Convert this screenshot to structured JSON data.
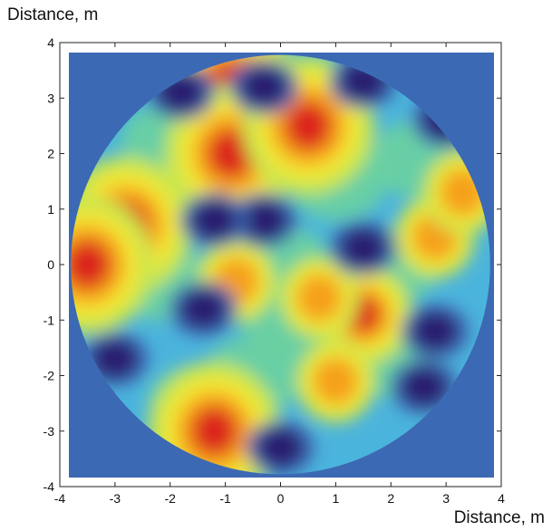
{
  "chart_data": {
    "type": "heatmap",
    "xlabel": "Distance, m",
    "ylabel": "Distance, m",
    "xlim": [
      -4,
      4
    ],
    "ylim": [
      -4,
      4
    ],
    "x_ticks": [
      "-4",
      "-3",
      "-2",
      "-1",
      "0",
      "1",
      "2",
      "3",
      "4"
    ],
    "y_ticks": [
      "4",
      "3",
      "2",
      "1",
      "0",
      "-1",
      "-2",
      "-3",
      "-4"
    ],
    "domain_shape": "circle",
    "domain_radius": 3.8,
    "colormap": {
      "background": "#3c69b4",
      "levels": [
        "#2a1f6e",
        "#3c69b4",
        "#4bb4dc",
        "#6cd2a0",
        "#c8e650",
        "#f5e632",
        "#f5a01e",
        "#dc281e"
      ]
    },
    "hotspots": [
      {
        "x": -2.8,
        "y": 0.7,
        "level": "high"
      },
      {
        "x": -3.5,
        "y": 0.0,
        "level": "high"
      },
      {
        "x": -0.9,
        "y": 3.2,
        "level": "high"
      },
      {
        "x": -0.9,
        "y": 2.0,
        "level": "high"
      },
      {
        "x": 0.5,
        "y": 2.5,
        "level": "high"
      },
      {
        "x": -1.2,
        "y": -3.0,
        "level": "high"
      },
      {
        "x": 1.5,
        "y": -0.9,
        "level": "medium-high"
      },
      {
        "x": 0.7,
        "y": -0.6,
        "level": "medium"
      },
      {
        "x": -0.8,
        "y": -0.3,
        "level": "medium"
      },
      {
        "x": 1.0,
        "y": -2.1,
        "level": "medium"
      },
      {
        "x": 2.8,
        "y": 0.5,
        "level": "medium"
      },
      {
        "x": 3.3,
        "y": 1.3,
        "level": "medium"
      }
    ],
    "lowspots": [
      {
        "x": -1.8,
        "y": 3.1
      },
      {
        "x": -0.3,
        "y": 3.2
      },
      {
        "x": 1.5,
        "y": 3.3
      },
      {
        "x": -0.3,
        "y": 0.8
      },
      {
        "x": -1.2,
        "y": 0.8
      },
      {
        "x": 1.5,
        "y": 0.3
      },
      {
        "x": -1.4,
        "y": -0.8
      },
      {
        "x": -3.0,
        "y": -1.7
      },
      {
        "x": 2.8,
        "y": -1.2
      },
      {
        "x": 2.6,
        "y": -2.2
      },
      {
        "x": 0.0,
        "y": -3.3
      },
      {
        "x": 3.0,
        "y": 2.6
      }
    ]
  }
}
